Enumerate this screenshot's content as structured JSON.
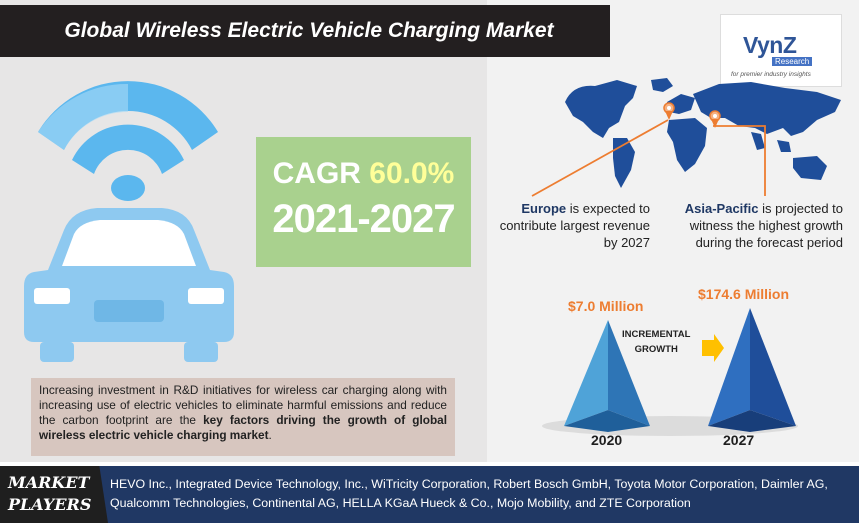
{
  "title": "Global Wireless Electric Vehicle Charging Market",
  "logo": {
    "name": "VynZ",
    "sub": "Research",
    "tagline": "for premier industry insights"
  },
  "cagr": {
    "prefix": "CAGR",
    "value": "60.0%",
    "period": "2021-2027"
  },
  "description": {
    "text": "Increasing investment in R&D initiatives for wireless car charging along with increasing use of electric vehicles to eliminate harmful emissions and reduce the carbon footprint are the ",
    "bold": "key factors driving the growth of global wireless electric vehicle charging market",
    "end": "."
  },
  "regions": {
    "europe": {
      "name": "Europe",
      "text": " is expected to contribute largest revenue by 2027"
    },
    "asia": {
      "name": "Asia-Pacific",
      "text": " is projected to witness the highest growth during the forecast period"
    }
  },
  "market_values": {
    "value_2020": "$7.0 Million",
    "value_2027": "$174.6 Million",
    "incremental_line1": "INCREMENTAL",
    "incremental_line2": "GROWTH",
    "year_2020": "2020",
    "year_2027": "2027"
  },
  "players": {
    "label_line1": "MARKET",
    "label_line2": "PLAYERS",
    "list": "HEVO Inc., Integrated Device Technology, Inc., WiTricity Corporation, Robert Bosch GmbH, Toyota Motor Corporation, Daimler AG, Qualcomm Technologies, Continental AG, HELLA KGaA Hueck & Co., Mojo Mobility, and ZTE Corporation"
  },
  "colors": {
    "accent_orange": "#ed7d31",
    "map_blue": "#1f4e9a",
    "car_blue": "#8ec9f0",
    "cagr_green": "#a9d18e",
    "footer_blue": "#203864"
  }
}
